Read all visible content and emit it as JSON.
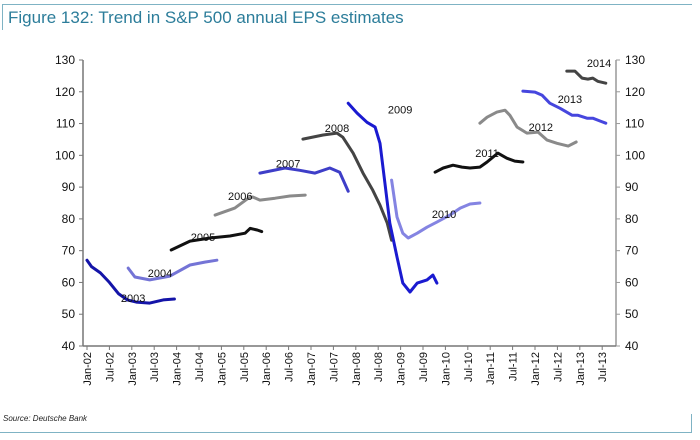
{
  "title": "Figure 132: Trend in S&P 500 annual EPS estimates",
  "source": "Source: Deutsche Bank",
  "chart_data": {
    "type": "line",
    "title": "Figure 132: Trend in S&P 500 annual EPS estimates",
    "xlabel": "",
    "ylabel": "",
    "ylim": [
      40,
      130
    ],
    "yticks": [
      40,
      50,
      60,
      70,
      80,
      90,
      100,
      110,
      120,
      130
    ],
    "secondary_yticks": [
      40,
      50,
      60,
      70,
      80,
      90,
      100,
      110,
      120,
      130
    ],
    "xlim": [
      2002.0,
      2013.5
    ],
    "xtick_labels": [
      "Jan-02",
      "Jul-02",
      "Jan-03",
      "Jul-03",
      "Jan-04",
      "Jul-04",
      "Jan-05",
      "Jul-05",
      "Jan-06",
      "Jul-06",
      "Jan-07",
      "Jul-07",
      "Jan-08",
      "Jul-08",
      "Jan-09",
      "Jul-09",
      "Jan-10",
      "Jul-10",
      "Jan-11",
      "Jul-11",
      "Jan-12",
      "Jul-12",
      "Jan-13",
      "Jul-13"
    ],
    "grid": false,
    "legend": "none (inline series labels)",
    "series": [
      {
        "name": "2003",
        "color": "#1414a8",
        "points": [
          [
            2002.0,
            67
          ],
          [
            2002.1,
            65
          ],
          [
            2002.3,
            63
          ],
          [
            2002.5,
            60
          ],
          [
            2002.7,
            56.5
          ],
          [
            2002.9,
            54.5
          ],
          [
            2003.1,
            53.8
          ],
          [
            2003.4,
            53.5
          ],
          [
            2003.7,
            54.5
          ],
          [
            2003.95,
            54.8
          ]
        ]
      },
      {
        "name": "2004",
        "color": "#7474d6",
        "points": [
          [
            2002.92,
            64.5
          ],
          [
            2003.07,
            61.7
          ],
          [
            2003.4,
            60.8
          ],
          [
            2003.85,
            62
          ],
          [
            2004.3,
            65.5
          ],
          [
            2004.63,
            66.4
          ],
          [
            2004.9,
            67
          ]
        ]
      },
      {
        "name": "2005",
        "color": "#111111",
        "points": [
          [
            2003.88,
            70.2
          ],
          [
            2004.3,
            73
          ],
          [
            2004.75,
            74
          ],
          [
            2005.19,
            74.6
          ],
          [
            2005.53,
            75.5
          ],
          [
            2005.64,
            77
          ],
          [
            2005.8,
            76.5
          ],
          [
            2005.9,
            76
          ]
        ]
      },
      {
        "name": "2006",
        "color": "#8a8a8a",
        "points": [
          [
            2004.86,
            81.2
          ],
          [
            2005.3,
            83.4
          ],
          [
            2005.6,
            86.5
          ],
          [
            2005.7,
            86.9
          ],
          [
            2005.86,
            85.9
          ],
          [
            2006.2,
            86.5
          ],
          [
            2006.53,
            87.2
          ],
          [
            2006.87,
            87.5
          ]
        ]
      },
      {
        "name": "2007",
        "color": "#3e3ec8",
        "points": [
          [
            2005.86,
            94.4
          ],
          [
            2006.42,
            96
          ],
          [
            2006.75,
            95.3
          ],
          [
            2007.09,
            94.4
          ],
          [
            2007.42,
            96
          ],
          [
            2007.64,
            94.7
          ],
          [
            2007.83,
            88.7
          ]
        ]
      },
      {
        "name": "2008",
        "color": "#444444",
        "points": [
          [
            2006.82,
            105.1
          ],
          [
            2007.27,
            106.4
          ],
          [
            2007.58,
            107
          ],
          [
            2007.71,
            105.7
          ],
          [
            2007.94,
            100.7
          ],
          [
            2008.16,
            94.4
          ],
          [
            2008.38,
            89
          ],
          [
            2008.54,
            84.3
          ],
          [
            2008.7,
            78.7
          ],
          [
            2008.8,
            73.3
          ]
        ]
      },
      {
        "name": "2009",
        "color": "#1a1ad0",
        "points": [
          [
            2007.83,
            116.4
          ],
          [
            2008.03,
            113.3
          ],
          [
            2008.25,
            110.4
          ],
          [
            2008.43,
            108.9
          ],
          [
            2008.54,
            103.8
          ],
          [
            2008.65,
            91.3
          ],
          [
            2008.76,
            78.7
          ],
          [
            2008.92,
            68
          ],
          [
            2009.05,
            59.8
          ],
          [
            2009.21,
            57
          ],
          [
            2009.37,
            59.8
          ],
          [
            2009.59,
            60.8
          ],
          [
            2009.72,
            62.3
          ],
          [
            2009.81,
            59.8
          ]
        ]
      },
      {
        "name": "2010",
        "color": "#8484e2",
        "points": [
          [
            2008.8,
            92.2
          ],
          [
            2008.92,
            80.6
          ],
          [
            2009.05,
            75.5
          ],
          [
            2009.17,
            74
          ],
          [
            2009.37,
            75.5
          ],
          [
            2009.59,
            77.4
          ],
          [
            2009.81,
            79
          ],
          [
            2010.1,
            81.2
          ],
          [
            2010.33,
            83.4
          ],
          [
            2010.55,
            84.7
          ],
          [
            2010.77,
            85
          ]
        ]
      },
      {
        "name": "2011",
        "color": "#111111",
        "points": [
          [
            2009.77,
            94.7
          ],
          [
            2009.95,
            96
          ],
          [
            2010.17,
            96.9
          ],
          [
            2010.37,
            96.3
          ],
          [
            2010.55,
            96
          ],
          [
            2010.77,
            96.3
          ],
          [
            2010.93,
            97.9
          ],
          [
            2011.06,
            99.4
          ],
          [
            2011.17,
            100.7
          ],
          [
            2011.37,
            99.1
          ],
          [
            2011.55,
            98.2
          ],
          [
            2011.73,
            97.9
          ]
        ]
      },
      {
        "name": "2012",
        "color": "#8a8a8a",
        "points": [
          [
            2010.77,
            110.1
          ],
          [
            2010.93,
            112
          ],
          [
            2011.15,
            113.6
          ],
          [
            2011.33,
            114.2
          ],
          [
            2011.44,
            112.6
          ],
          [
            2011.6,
            108.9
          ],
          [
            2011.82,
            107
          ],
          [
            2012.07,
            107.3
          ],
          [
            2012.27,
            104.8
          ],
          [
            2012.49,
            103.8
          ],
          [
            2012.74,
            102.9
          ],
          [
            2012.92,
            104.2
          ]
        ]
      },
      {
        "name": "2013",
        "color": "#4646de",
        "points": [
          [
            2011.73,
            120.2
          ],
          [
            2012.0,
            119.9
          ],
          [
            2012.16,
            118.9
          ],
          [
            2012.33,
            116.4
          ],
          [
            2012.56,
            114.8
          ],
          [
            2012.83,
            112.6
          ],
          [
            2012.96,
            112.6
          ],
          [
            2013.16,
            111.7
          ],
          [
            2013.29,
            111.7
          ],
          [
            2013.45,
            110.8
          ],
          [
            2013.58,
            110.1
          ]
        ]
      },
      {
        "name": "2014",
        "color": "#444444",
        "points": [
          [
            2012.71,
            126.5
          ],
          [
            2012.89,
            126.5
          ],
          [
            2013.05,
            124.3
          ],
          [
            2013.18,
            124
          ],
          [
            2013.29,
            124.3
          ],
          [
            2013.4,
            123.3
          ],
          [
            2013.58,
            122.7
          ]
        ]
      }
    ]
  }
}
